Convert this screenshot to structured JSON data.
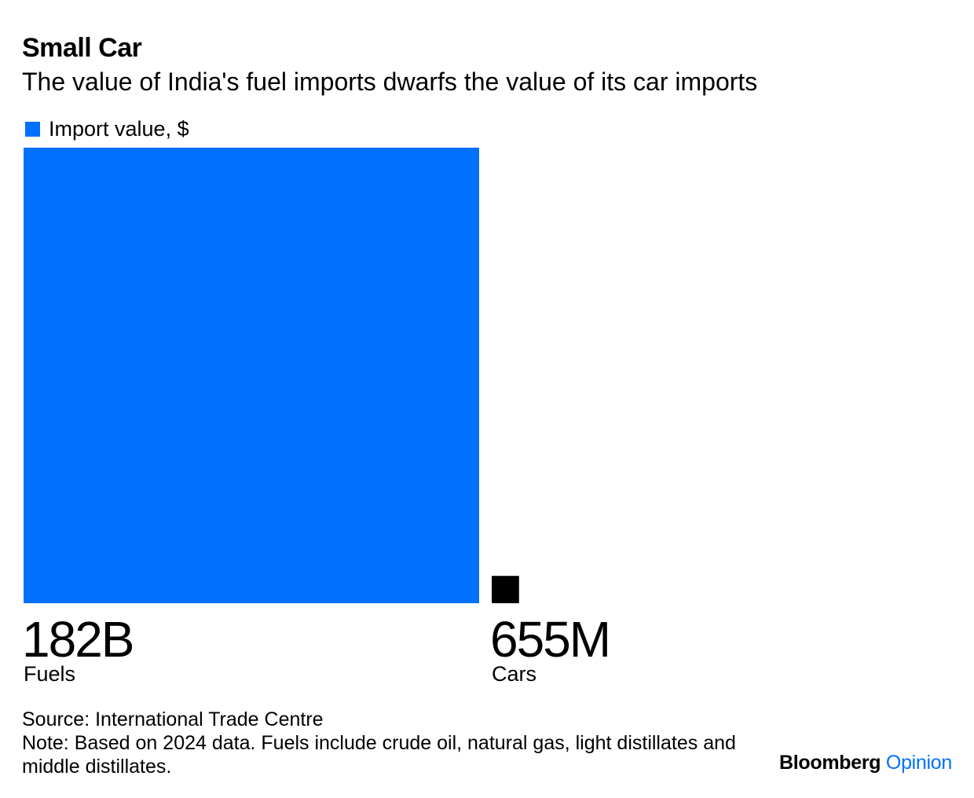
{
  "title": "Small Car",
  "subtitle": "The value of India's fuel imports dwarfs the value of its car imports",
  "legend": {
    "label": "Import value, $",
    "color": "#0070FF"
  },
  "chart_data": {
    "type": "bar",
    "encoding": "area",
    "title": "Small Car",
    "subtitle": "The value of India's fuel imports dwarfs the value of its car imports",
    "categories": [
      "Fuels",
      "Cars"
    ],
    "values": [
      182000000000,
      655000000
    ],
    "value_labels": [
      "182B",
      "655M"
    ],
    "colors": [
      "#0070FF",
      "#000000"
    ],
    "series": [
      {
        "name": "Import value, $",
        "values": [
          182000000000,
          655000000
        ]
      }
    ],
    "legend_position": "top-left",
    "grid": false
  },
  "footer": {
    "source": "Source: International Trade Centre",
    "note": "Note: Based on 2024 data. Fuels include crude oil, natural gas, light distillates and middle distillates."
  },
  "branding": {
    "name": "Bloomberg",
    "accent": "Opinion",
    "accent_color": "#0070FF"
  }
}
